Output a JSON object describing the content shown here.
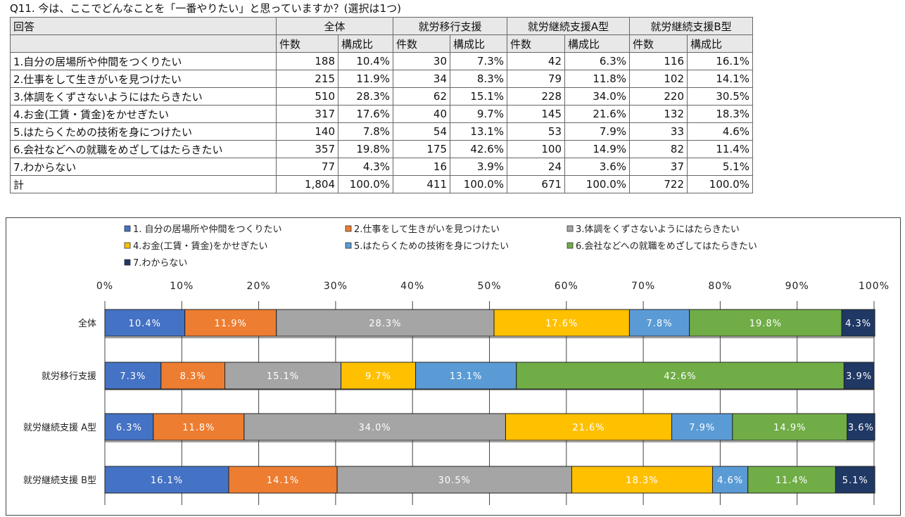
{
  "question": "Q11. 今は、ここでどんなことを「一番やりたい」と思っていますか？(選択は1つ)",
  "table": {
    "answer_header": "回答",
    "groups": [
      "全体",
      "就労移行支援",
      "就労継続支援A型",
      "就労継続支援B型"
    ],
    "sub_headers": [
      "件数",
      "構成比"
    ],
    "rows": [
      {
        "label": "1.自分の居場所や仲間をつくりたい",
        "cells": [
          "188",
          "10.4%",
          "30",
          "7.3%",
          "42",
          "6.3%",
          "116",
          "16.1%"
        ]
      },
      {
        "label": "2.仕事をして生きがいを見つけたい",
        "cells": [
          "215",
          "11.9%",
          "34",
          "8.3%",
          "79",
          "11.8%",
          "102",
          "14.1%"
        ]
      },
      {
        "label": "3.体調をくずさないようにはたらきたい",
        "cells": [
          "510",
          "28.3%",
          "62",
          "15.1%",
          "228",
          "34.0%",
          "220",
          "30.5%"
        ]
      },
      {
        "label": "4.お金(工賃・賃金)をかせぎたい",
        "cells": [
          "317",
          "17.6%",
          "40",
          "9.7%",
          "145",
          "21.6%",
          "132",
          "18.3%"
        ]
      },
      {
        "label": "5.はたらくための技術を身につけたい",
        "cells": [
          "140",
          "7.8%",
          "54",
          "13.1%",
          "53",
          "7.9%",
          "33",
          "4.6%"
        ]
      },
      {
        "label": "6.会社などへの就職をめざしてはたらきたい",
        "cells": [
          "357",
          "19.8%",
          "175",
          "42.6%",
          "100",
          "14.9%",
          "82",
          "11.4%"
        ]
      },
      {
        "label": "7.わからない",
        "cells": [
          "77",
          "4.3%",
          "16",
          "3.9%",
          "24",
          "3.6%",
          "37",
          "5.1%"
        ]
      },
      {
        "label": "計",
        "cells": [
          "1,804",
          "100.0%",
          "411",
          "100.0%",
          "671",
          "100.0%",
          "722",
          "100.0%"
        ]
      }
    ]
  },
  "chart_data": {
    "type": "bar",
    "orientation": "horizontal",
    "stacked": true,
    "categories": [
      "全体",
      "就労移行支援",
      "就労継続支援 A型",
      "就労継続支援 B型"
    ],
    "xlim": [
      0,
      100
    ],
    "xticks": [
      "0%",
      "10%",
      "20%",
      "30%",
      "40%",
      "50%",
      "60%",
      "70%",
      "80%",
      "90%",
      "100%"
    ],
    "grid": true,
    "legend_position": "top",
    "series": [
      {
        "name": "1. 自分の居場所や仲間をつくりたい",
        "color": "#4472c4",
        "text_color": "#ffffff",
        "values": [
          10.4,
          7.3,
          6.3,
          16.1
        ],
        "labels": [
          "10.4%",
          "7.3%",
          "6.3%",
          "16.1%"
        ]
      },
      {
        "name": "2.仕事をして生きがいを見つけたい",
        "color": "#ed7d31",
        "text_color": "#ffffff",
        "values": [
          11.9,
          8.3,
          11.8,
          14.1
        ],
        "labels": [
          "11.9%",
          "8.3%",
          "11.8%",
          "14.1%"
        ]
      },
      {
        "name": "3.体調をくずさないようにはたらきたい",
        "color": "#a5a5a5",
        "text_color": "#ffffff",
        "values": [
          28.3,
          15.1,
          34.0,
          30.5
        ],
        "labels": [
          "28.3%",
          "15.1%",
          "34.0%",
          "30.5%"
        ]
      },
      {
        "name": "4.お金(工賃・賃金)をかせぎたい",
        "color": "#ffc000",
        "text_color": "#ffffff",
        "values": [
          17.6,
          9.7,
          21.6,
          18.3
        ],
        "labels": [
          "17.6%",
          "9.7%",
          "21.6%",
          "18.3%"
        ]
      },
      {
        "name": "5.はたらくための技術を身につけたい",
        "color": "#5b9bd5",
        "text_color": "#ffffff",
        "values": [
          7.8,
          13.1,
          7.9,
          4.6
        ],
        "labels": [
          "7.8%",
          "13.1%",
          "7.9%",
          "4.6%"
        ]
      },
      {
        "name": "6.会社などへの就職をめざしてはたらきたい",
        "color": "#70ad47",
        "text_color": "#ffffff",
        "values": [
          19.8,
          42.6,
          14.9,
          11.4
        ],
        "labels": [
          "19.8%",
          "42.6%",
          "14.9%",
          "11.4%"
        ]
      },
      {
        "name": "7.わからない",
        "color": "#1f3864",
        "text_color": "#ffffff",
        "values": [
          4.3,
          3.9,
          3.6,
          5.1
        ],
        "labels": [
          "4.3%",
          "3.9%",
          "3.6%",
          "5.1%"
        ]
      }
    ]
  }
}
